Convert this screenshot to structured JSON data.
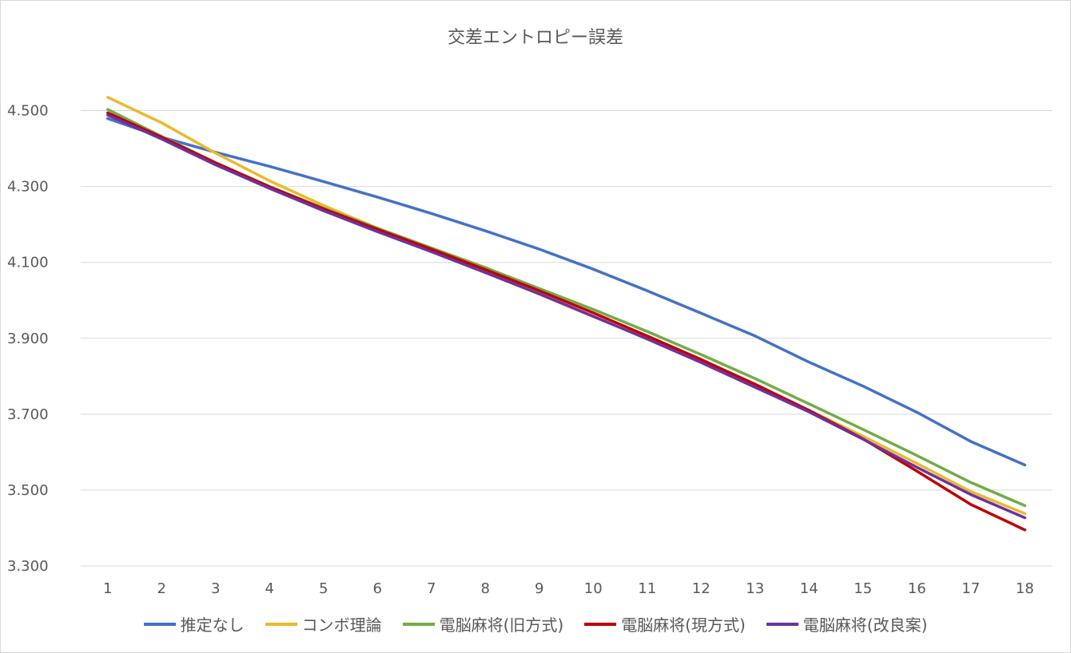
{
  "chart_data": {
    "type": "line",
    "title": "交差エントロピー誤差",
    "xlabel": "",
    "ylabel": "",
    "x": [
      1,
      2,
      3,
      4,
      5,
      6,
      7,
      8,
      9,
      10,
      11,
      12,
      13,
      14,
      15,
      16,
      17,
      18
    ],
    "x_tick_labels": [
      "1",
      "2",
      "3",
      "4",
      "5",
      "6",
      "7",
      "8",
      "9",
      "10",
      "11",
      "12",
      "13",
      "14",
      "15",
      "16",
      "17",
      "18"
    ],
    "ylim": [
      3.3,
      4.6
    ],
    "y_ticks": [
      3.3,
      3.5,
      3.7,
      3.9,
      4.1,
      4.3,
      4.5
    ],
    "y_tick_labels": [
      "3.300",
      "3.500",
      "3.700",
      "3.900",
      "4.100",
      "4.300",
      "4.500"
    ],
    "grid": true,
    "legend_position": "bottom",
    "series": [
      {
        "name": "推定なし",
        "color": "#4472c4",
        "values": [
          4.479,
          4.43,
          4.39,
          4.353,
          4.313,
          4.272,
          4.229,
          4.183,
          4.135,
          4.082,
          4.025,
          3.966,
          3.906,
          3.837,
          3.774,
          3.705,
          3.628,
          3.566
        ]
      },
      {
        "name": "コンボ理論",
        "color": "#ecb92c",
        "values": [
          4.535,
          4.468,
          4.388,
          4.315,
          4.25,
          4.19,
          4.132,
          4.074,
          4.016,
          3.957,
          3.9,
          3.84,
          3.777,
          3.71,
          3.642,
          3.57,
          3.496,
          3.438
        ]
      },
      {
        "name": "電脳麻将(旧方式)",
        "color": "#70ad47",
        "values": [
          4.503,
          4.432,
          4.363,
          4.3,
          4.243,
          4.19,
          4.138,
          4.086,
          4.031,
          3.976,
          3.918,
          3.857,
          3.794,
          3.727,
          3.66,
          3.591,
          3.52,
          3.459
        ]
      },
      {
        "name": "電脳麻将(現方式)",
        "color": "#c00000",
        "values": [
          4.494,
          4.43,
          4.362,
          4.299,
          4.241,
          4.187,
          4.135,
          4.081,
          4.025,
          3.967,
          3.906,
          3.844,
          3.779,
          3.71,
          3.635,
          3.55,
          3.462,
          3.395
        ]
      },
      {
        "name": "電脳麻将(改良案)",
        "color": "#7030a0",
        "values": [
          4.488,
          4.425,
          4.357,
          4.295,
          4.236,
          4.181,
          4.128,
          4.073,
          4.017,
          3.958,
          3.898,
          3.836,
          3.771,
          3.706,
          3.634,
          3.56,
          3.488,
          3.427
        ]
      }
    ]
  }
}
